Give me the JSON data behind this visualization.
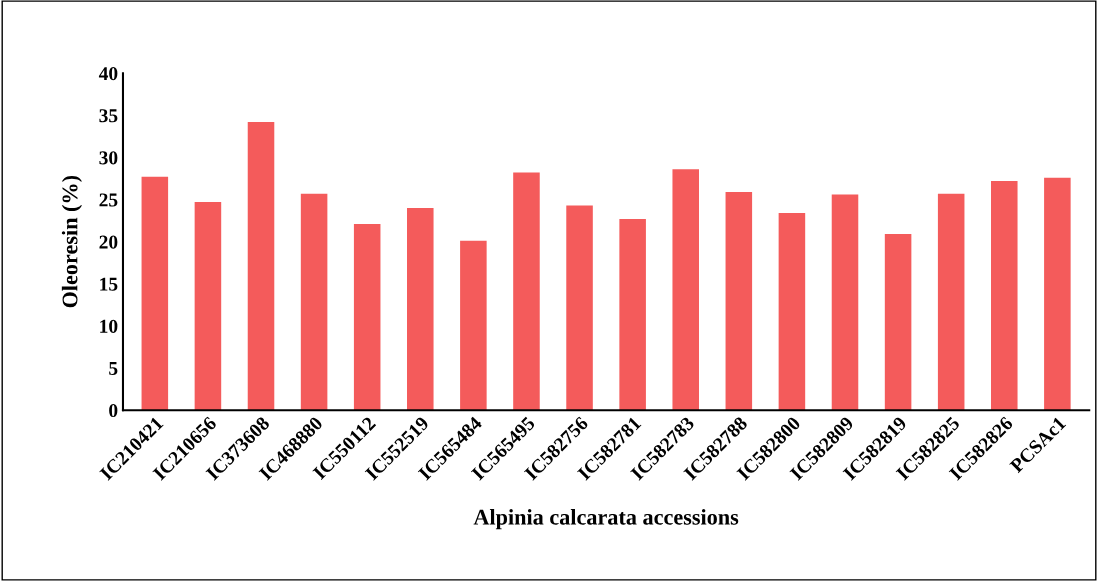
{
  "chart_data": {
    "type": "bar",
    "xlabel": "Alpinia calcarata accessions",
    "ylabel": "Oleoresin (%)",
    "categories": [
      "IC210421",
      "IC210656",
      "IC373608",
      "IC468880",
      "IC550112",
      "IC552519",
      "IC565484",
      "IC565495",
      "IC582756",
      "IC582781",
      "IC582783",
      "IC582788",
      "IC582800",
      "IC582809",
      "IC582819",
      "IC582825",
      "IC582826",
      "PCSAc1"
    ],
    "values": [
      27.7,
      24.7,
      34.2,
      25.7,
      22.1,
      24.0,
      20.1,
      28.2,
      24.3,
      22.7,
      28.6,
      25.9,
      23.4,
      25.6,
      20.9,
      25.7,
      27.2,
      27.6
    ],
    "color": "#f45b5b",
    "ylim": [
      0,
      40
    ],
    "yticks": [
      0,
      5,
      10,
      15,
      20,
      25,
      30,
      35,
      40
    ],
    "grid": false,
    "legend": false
  }
}
